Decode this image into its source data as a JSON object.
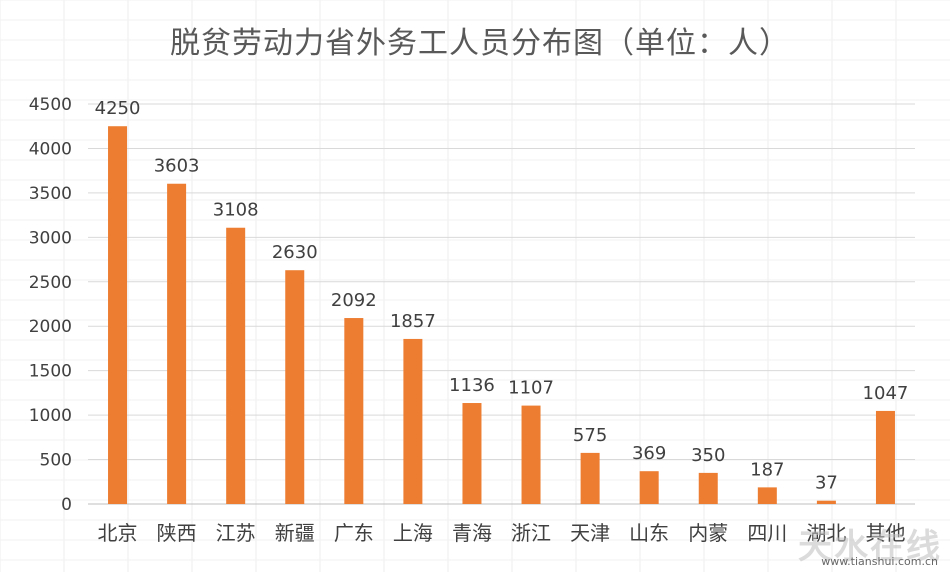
{
  "chart_data": {
    "type": "bar",
    "title": "脱贫劳动力省外务工人员分布图（单位：人）",
    "categories": [
      "北京",
      "陕西",
      "江苏",
      "新疆",
      "广东",
      "上海",
      "青海",
      "浙江",
      "天津",
      "山东",
      "内蒙",
      "四川",
      "湖北",
      "其他"
    ],
    "values": [
      4250,
      3603,
      3108,
      2630,
      2092,
      1857,
      1136,
      1107,
      575,
      369,
      350,
      187,
      37,
      1047
    ],
    "yticks": [
      0,
      500,
      1000,
      1500,
      2000,
      2500,
      3000,
      3500,
      4000,
      4500
    ],
    "ylim": [
      0,
      4500
    ],
    "grid": true,
    "legend": "none",
    "bar_color": "#ED7D31"
  },
  "watermark": "天水在线",
  "watermark_url": "www.tianshui.com.cn"
}
